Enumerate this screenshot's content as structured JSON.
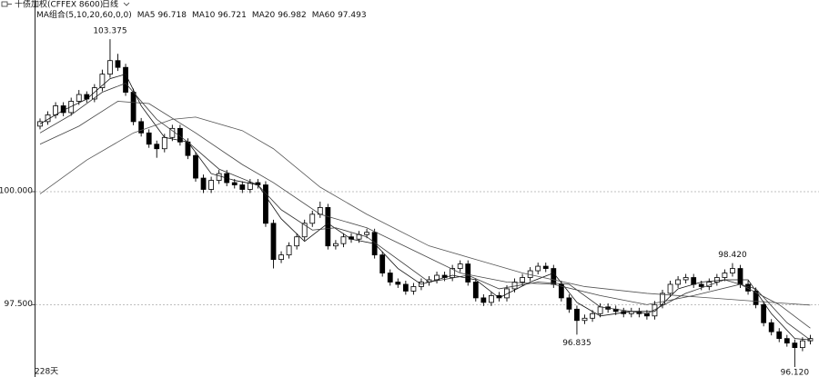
{
  "header": {
    "title": "十债加权(CFFEX 8600)",
    "period": "日线",
    "indicator": "MA组合(5,10,20,60,0,0)"
  },
  "footer": "228天",
  "chart_data": {
    "type": "candlestick",
    "ylim": [
      96.1,
      104.0
    ],
    "yticks": [
      {
        "value": 100,
        "label": "100.000"
      },
      {
        "value": 97.5,
        "label": "97.500"
      }
    ],
    "grid": true,
    "up_color": "#ffffff",
    "down_color": "#000000",
    "candles": [
      [
        101.45,
        101.62,
        101.38,
        101.55
      ],
      [
        101.55,
        101.78,
        101.48,
        101.7
      ],
      [
        101.7,
        101.98,
        101.62,
        101.9
      ],
      [
        101.9,
        101.98,
        101.67,
        101.75
      ],
      [
        101.75,
        102.08,
        101.68,
        102.0
      ],
      [
        102.0,
        102.25,
        101.92,
        102.15
      ],
      [
        102.15,
        102.22,
        101.97,
        102.05
      ],
      [
        102.05,
        102.38,
        101.98,
        102.3
      ],
      [
        102.3,
        102.7,
        102.22,
        102.6
      ],
      [
        102.6,
        103.375,
        102.52,
        102.9
      ],
      [
        102.9,
        103.05,
        102.67,
        102.75
      ],
      [
        102.75,
        102.83,
        102.12,
        102.2
      ],
      [
        102.2,
        102.28,
        101.47,
        101.55
      ],
      [
        101.55,
        101.63,
        101.22,
        101.3
      ],
      [
        101.3,
        101.38,
        100.97,
        101.05
      ],
      [
        101.05,
        101.13,
        100.75,
        100.95
      ],
      [
        100.95,
        101.28,
        100.87,
        101.2
      ],
      [
        101.2,
        101.48,
        101.12,
        101.4
      ],
      [
        101.4,
        101.48,
        101.02,
        101.1
      ],
      [
        101.1,
        101.18,
        100.72,
        100.8
      ],
      [
        100.8,
        100.88,
        100.22,
        100.3
      ],
      [
        100.3,
        100.38,
        99.97,
        100.05
      ],
      [
        100.05,
        100.33,
        99.97,
        100.25
      ],
      [
        100.25,
        100.48,
        100.17,
        100.4
      ],
      [
        100.4,
        100.48,
        100.12,
        100.2
      ],
      [
        100.2,
        100.28,
        100.07,
        100.15
      ],
      [
        100.15,
        100.23,
        99.97,
        100.05
      ],
      [
        100.05,
        100.28,
        99.97,
        100.2
      ],
      [
        100.2,
        100.28,
        100.07,
        100.15
      ],
      [
        100.15,
        100.23,
        99.22,
        99.3
      ],
      [
        99.3,
        99.38,
        98.3,
        98.5
      ],
      [
        98.5,
        98.68,
        98.42,
        98.6
      ],
      [
        98.6,
        98.88,
        98.52,
        98.8
      ],
      [
        98.8,
        99.08,
        98.72,
        99.0
      ],
      [
        99.0,
        99.38,
        98.92,
        99.3
      ],
      [
        99.3,
        99.58,
        99.22,
        99.5
      ],
      [
        99.5,
        99.78,
        99.42,
        99.65
      ],
      [
        99.65,
        99.73,
        98.72,
        98.8
      ],
      [
        98.8,
        98.93,
        98.72,
        98.85
      ],
      [
        98.85,
        99.08,
        98.77,
        99.0
      ],
      [
        99.0,
        99.08,
        98.87,
        98.95
      ],
      [
        98.95,
        99.13,
        98.87,
        99.05
      ],
      [
        99.05,
        99.18,
        98.97,
        99.1
      ],
      [
        99.1,
        99.18,
        98.52,
        98.6
      ],
      [
        98.6,
        98.68,
        98.12,
        98.2
      ],
      [
        98.2,
        98.28,
        97.92,
        98.0
      ],
      [
        98.0,
        98.08,
        97.87,
        97.95
      ],
      [
        97.95,
        98.03,
        97.72,
        97.8
      ],
      [
        97.8,
        97.98,
        97.72,
        97.9
      ],
      [
        97.9,
        98.08,
        97.82,
        98.0
      ],
      [
        98.0,
        98.13,
        97.92,
        98.05
      ],
      [
        98.05,
        98.23,
        97.97,
        98.15
      ],
      [
        98.15,
        98.23,
        98.02,
        98.1
      ],
      [
        98.1,
        98.38,
        98.02,
        98.3
      ],
      [
        98.3,
        98.48,
        98.22,
        98.4
      ],
      [
        98.4,
        98.48,
        97.92,
        98.0
      ],
      [
        98.0,
        98.08,
        97.57,
        97.65
      ],
      [
        97.65,
        97.73,
        97.47,
        97.55
      ],
      [
        97.55,
        97.78,
        97.47,
        97.7
      ],
      [
        97.7,
        97.78,
        97.57,
        97.65
      ],
      [
        97.65,
        97.93,
        97.57,
        97.85
      ],
      [
        97.85,
        98.08,
        97.77,
        98.0
      ],
      [
        98.0,
        98.18,
        97.92,
        98.1
      ],
      [
        98.1,
        98.33,
        98.02,
        98.25
      ],
      [
        98.25,
        98.43,
        98.17,
        98.35
      ],
      [
        98.35,
        98.43,
        98.22,
        98.3
      ],
      [
        98.3,
        98.38,
        97.87,
        97.95
      ],
      [
        97.95,
        98.03,
        97.57,
        97.65
      ],
      [
        97.65,
        97.73,
        97.32,
        97.4
      ],
      [
        97.4,
        97.48,
        96.835,
        97.15
      ],
      [
        97.15,
        97.28,
        97.07,
        97.2
      ],
      [
        97.2,
        97.38,
        97.12,
        97.3
      ],
      [
        97.3,
        97.53,
        97.22,
        97.45
      ],
      [
        97.45,
        97.53,
        97.32,
        97.4
      ],
      [
        97.4,
        97.48,
        97.27,
        97.35
      ],
      [
        97.35,
        97.43,
        97.22,
        97.3
      ],
      [
        97.3,
        97.43,
        97.22,
        97.35
      ],
      [
        97.35,
        97.43,
        97.22,
        97.3
      ],
      [
        97.3,
        97.38,
        97.17,
        97.25
      ],
      [
        97.25,
        97.58,
        97.17,
        97.5
      ],
      [
        97.5,
        97.83,
        97.42,
        97.75
      ],
      [
        97.75,
        98.03,
        97.67,
        97.95
      ],
      [
        97.95,
        98.13,
        97.87,
        98.05
      ],
      [
        98.05,
        98.18,
        97.97,
        98.1
      ],
      [
        98.1,
        98.18,
        97.87,
        97.95
      ],
      [
        97.95,
        98.03,
        97.82,
        97.9
      ],
      [
        97.9,
        98.08,
        97.82,
        98.0
      ],
      [
        98.0,
        98.18,
        97.92,
        98.1
      ],
      [
        98.1,
        98.28,
        98.02,
        98.2
      ],
      [
        98.2,
        98.42,
        98.12,
        98.3
      ],
      [
        98.3,
        98.38,
        97.87,
        97.95
      ],
      [
        97.95,
        98.03,
        97.72,
        97.8
      ],
      [
        97.8,
        97.88,
        97.42,
        97.5
      ],
      [
        97.5,
        97.58,
        97.02,
        97.1
      ],
      [
        97.1,
        97.18,
        96.82,
        96.9
      ],
      [
        96.9,
        96.98,
        96.67,
        96.75
      ],
      [
        96.75,
        96.83,
        96.57,
        96.65
      ],
      [
        96.65,
        96.73,
        96.12,
        96.55
      ],
      [
        96.55,
        96.78,
        96.47,
        96.7
      ],
      [
        96.7,
        96.83,
        96.62,
        96.75
      ]
    ],
    "series": [
      {
        "name": "MA5",
        "last": 96.718,
        "color": "#111111",
        "x": [
          0,
          3,
          6,
          9,
          11,
          13,
          16,
          19,
          22,
          25,
          28,
          31,
          34,
          37,
          40,
          43,
          46,
          49,
          53,
          56,
          59,
          63,
          66,
          69,
          72,
          76,
          79,
          82,
          85,
          88,
          91,
          94,
          97,
          99
        ],
        "values": [
          101.5,
          101.8,
          102.05,
          102.5,
          102.6,
          101.9,
          101.2,
          101.1,
          100.4,
          100.25,
          100.15,
          99.4,
          98.9,
          99.3,
          98.95,
          98.85,
          98.3,
          97.95,
          98.15,
          98.05,
          97.65,
          98.0,
          98.2,
          97.55,
          97.25,
          97.35,
          97.35,
          97.85,
          98.0,
          98.05,
          98.05,
          97.3,
          96.75,
          96.72
        ]
      },
      {
        "name": "MA10",
        "last": 96.721,
        "color": "#333333",
        "x": [
          0,
          4,
          8,
          11,
          15,
          19,
          23,
          28,
          31,
          35,
          38,
          42,
          46,
          50,
          55,
          59,
          64,
          68,
          72,
          78,
          83,
          88,
          92,
          96,
          99
        ],
        "values": [
          101.3,
          101.7,
          102.2,
          102.4,
          101.6,
          101.1,
          100.5,
          100.15,
          99.6,
          99.15,
          99.2,
          99.0,
          98.5,
          98.0,
          98.15,
          97.85,
          98.0,
          97.95,
          97.45,
          97.3,
          97.75,
          98.05,
          97.85,
          97.1,
          96.72
        ]
      },
      {
        "name": "MA20",
        "last": 96.982,
        "color": "#444444",
        "x": [
          0,
          5,
          10,
          14,
          20,
          26,
          30,
          36,
          42,
          48,
          54,
          60,
          66,
          72,
          78,
          84,
          90,
          95,
          99
        ],
        "values": [
          101.05,
          101.45,
          102.0,
          101.95,
          101.3,
          100.6,
          100.2,
          99.5,
          99.2,
          98.7,
          98.2,
          98.0,
          97.95,
          97.7,
          97.5,
          97.7,
          97.95,
          97.5,
          96.98
        ]
      },
      {
        "name": "MA60",
        "last": 97.493,
        "color": "#555555",
        "x": [
          0,
          6,
          12,
          17,
          20,
          26,
          30,
          36,
          42,
          50,
          56,
          62,
          70,
          78,
          86,
          94,
          99
        ],
        "values": [
          99.95,
          100.7,
          101.3,
          101.6,
          101.65,
          101.35,
          100.95,
          100.1,
          99.5,
          98.8,
          98.5,
          98.2,
          97.9,
          97.75,
          97.65,
          97.55,
          97.49
        ]
      }
    ],
    "annotations": [
      {
        "value": 103.375,
        "label": "103.375",
        "at": 9,
        "side": "high"
      },
      {
        "value": 98.42,
        "label": "98.420",
        "at": 89,
        "side": "high"
      },
      {
        "value": 96.835,
        "label": "96.835",
        "at": 69,
        "side": "low"
      },
      {
        "value": 96.12,
        "label": "96.120",
        "at": 97,
        "side": "low"
      }
    ]
  }
}
